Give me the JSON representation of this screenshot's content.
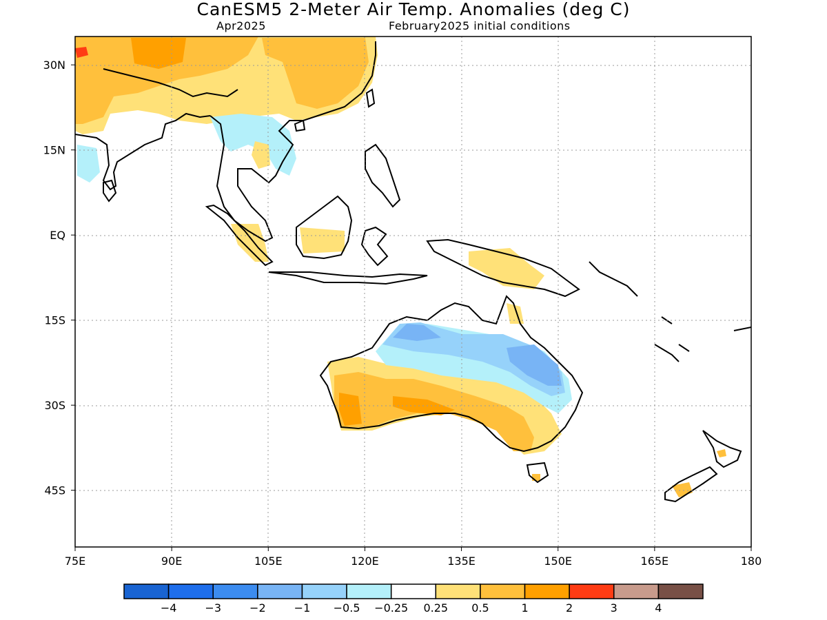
{
  "title": "CanESM5 2-Meter Air Temp. Anomalies (deg C)",
  "subtitle_left": "Apr2025",
  "subtitle_right": "February2025 initial conditions",
  "map": {
    "lon_range": [
      75,
      180
    ],
    "lat_range": [
      -55,
      35
    ],
    "lat_ticks": [
      {
        "value": 30,
        "label": "30N"
      },
      {
        "value": 15,
        "label": "15N"
      },
      {
        "value": 0,
        "label": "EQ"
      },
      {
        "value": -15,
        "label": "15S"
      },
      {
        "value": -30,
        "label": "30S"
      },
      {
        "value": -45,
        "label": "45S"
      }
    ],
    "lon_ticks": [
      {
        "value": 75,
        "label": "75E"
      },
      {
        "value": 90,
        "label": "90E"
      },
      {
        "value": 105,
        "label": "105E"
      },
      {
        "value": 120,
        "label": "120E"
      },
      {
        "value": 135,
        "label": "135E"
      },
      {
        "value": 150,
        "label": "150E"
      },
      {
        "value": 165,
        "label": "165E"
      },
      {
        "value": 180,
        "label": "180"
      }
    ],
    "grid": true
  },
  "colorbar": {
    "colors": [
      "#1964d2",
      "#1e6eeb",
      "#3c8cf0",
      "#78b4f5",
      "#96d2fa",
      "#b4f0fa",
      "#ffffff",
      "#ffe178",
      "#ffc03c",
      "#ffa000",
      "#ff3c14",
      "#c89b8c",
      "#785046"
    ],
    "labels": [
      "-4",
      "-3",
      "-2",
      "-1",
      "-0.5",
      "-0.25",
      "0.25",
      "0.5",
      "1",
      "2",
      "3",
      "4"
    ]
  }
}
